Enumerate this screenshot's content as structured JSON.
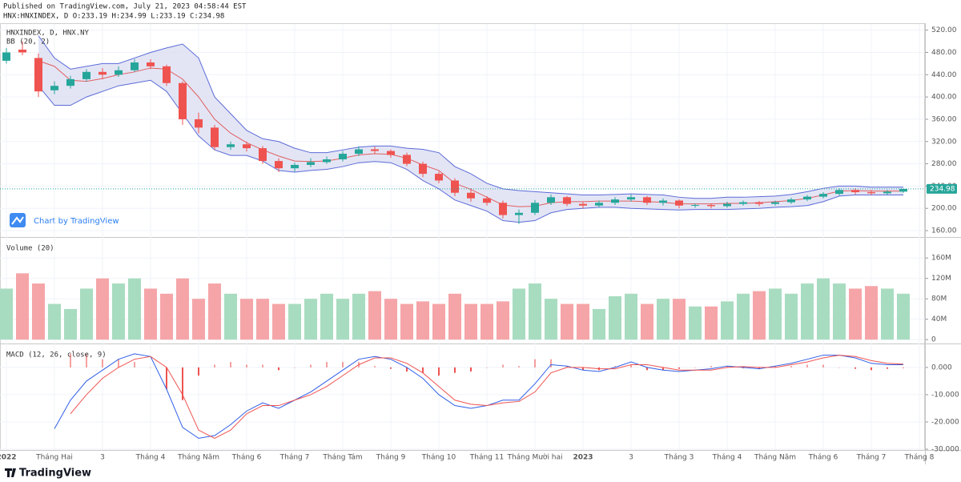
{
  "header": {
    "published": "Published on TradingView.com, July 21, 2023 04:58:44 EST",
    "quote": "HNX:HNXINDEX, D O:233.19 H:234.99 L:233.19 C:234.98"
  },
  "watermark": "Chart by TradingView",
  "footer": "TradingView",
  "chart_data": [
    {
      "type": "candlestick",
      "title": "HNXINDEX, D, HNX.NY",
      "study": "BB (20, 2)",
      "categories": [
        "2022",
        null,
        null,
        "Tháng Hai",
        null,
        null,
        "3",
        null,
        null,
        "Tháng 4",
        null,
        null,
        "Tháng Năm",
        null,
        null,
        "Tháng 6",
        null,
        null,
        "Tháng 7",
        null,
        null,
        "Tháng Tám",
        null,
        null,
        "Tháng 9",
        null,
        null,
        "Tháng 10",
        null,
        null,
        "Tháng 11",
        null,
        null,
        "Tháng Mười hai",
        null,
        null,
        "2023",
        null,
        null,
        "3",
        null,
        null,
        "Tháng 3",
        null,
        null,
        "Tháng 4",
        null,
        null,
        "Tháng Năm",
        null,
        null,
        "Tháng 6",
        null,
        null,
        "Tháng 7",
        null,
        null,
        "Tháng 8"
      ],
      "open": [
        465,
        485,
        470,
        412,
        420,
        432,
        445,
        440,
        448,
        462,
        455,
        425,
        360,
        345,
        310,
        315,
        308,
        285,
        272,
        278,
        283,
        288,
        298,
        306,
        303,
        296,
        280,
        262,
        250,
        228,
        218,
        210,
        188,
        192,
        210,
        220,
        208,
        205,
        210,
        216,
        220,
        210,
        214,
        205,
        206,
        204,
        208,
        211,
        208,
        211,
        216,
        221,
        226,
        233,
        229,
        227,
        230,
        null
      ],
      "high": [
        488,
        500,
        478,
        428,
        438,
        450,
        452,
        455,
        468,
        468,
        458,
        428,
        372,
        350,
        320,
        320,
        312,
        290,
        282,
        290,
        293,
        303,
        311,
        311,
        306,
        300,
        284,
        266,
        254,
        236,
        222,
        214,
        198,
        215,
        225,
        222,
        212,
        214,
        220,
        225,
        222,
        218,
        216,
        209,
        209,
        212,
        214,
        213,
        214,
        219,
        224,
        229,
        236,
        236,
        233,
        233,
        235,
        null
      ],
      "low": [
        460,
        475,
        400,
        405,
        415,
        428,
        432,
        436,
        445,
        450,
        420,
        350,
        335,
        305,
        305,
        302,
        280,
        265,
        266,
        274,
        280,
        284,
        294,
        298,
        291,
        276,
        256,
        245,
        222,
        212,
        205,
        182,
        172,
        188,
        206,
        204,
        200,
        202,
        206,
        212,
        206,
        205,
        200,
        201,
        200,
        201,
        205,
        204,
        205,
        208,
        213,
        218,
        223,
        225,
        224,
        224,
        228,
        null
      ],
      "close": [
        480,
        480,
        410,
        420,
        432,
        445,
        440,
        448,
        462,
        455,
        425,
        360,
        345,
        310,
        315,
        308,
        285,
        272,
        278,
        283,
        288,
        298,
        306,
        303,
        296,
        280,
        262,
        250,
        228,
        218,
        210,
        188,
        192,
        210,
        220,
        208,
        205,
        210,
        216,
        220,
        210,
        214,
        205,
        206,
        204,
        208,
        211,
        208,
        211,
        216,
        221,
        226,
        233,
        229,
        227,
        230,
        234.98,
        null
      ],
      "up_color": "#26a69a",
      "down_color": "#ef5350",
      "bands": {
        "upper": [
          null,
          null,
          510,
          470,
          450,
          455,
          460,
          460,
          470,
          480,
          488,
          495,
          470,
          400,
          370,
          340,
          325,
          320,
          308,
          300,
          300,
          305,
          310,
          312,
          312,
          308,
          306,
          300,
          275,
          262,
          245,
          235,
          232,
          230,
          228,
          226,
          224,
          224,
          225,
          226,
          225,
          224,
          220,
          218,
          218,
          220,
          220,
          221,
          222,
          225,
          230,
          236,
          240,
          240,
          238,
          238,
          238,
          null
        ],
        "middle": [
          null,
          null,
          465,
          455,
          430,
          428,
          433,
          440,
          445,
          452,
          450,
          432,
          400,
          360,
          335,
          318,
          305,
          294,
          285,
          284,
          285,
          290,
          296,
          298,
          297,
          290,
          278,
          268,
          245,
          234,
          220,
          206,
          203,
          204,
          210,
          212,
          212,
          213,
          213,
          213,
          212,
          211,
          208,
          208,
          208,
          209,
          209,
          210,
          212,
          214,
          218,
          224,
          231,
          232,
          231,
          231,
          231,
          null
        ],
        "lower": [
          null,
          null,
          420,
          385,
          385,
          400,
          410,
          420,
          425,
          430,
          410,
          370,
          330,
          305,
          295,
          295,
          285,
          268,
          265,
          268,
          270,
          275,
          282,
          284,
          282,
          270,
          250,
          235,
          215,
          205,
          195,
          178,
          175,
          178,
          192,
          198,
          200,
          202,
          202,
          200,
          199,
          198,
          197,
          198,
          198,
          198,
          199,
          200,
          202,
          203,
          205,
          212,
          222,
          224,
          224,
          224,
          224,
          null
        ],
        "band_color": "#5c6bd8",
        "fill_color": "#dcdff3",
        "middle_color": "#e06060"
      },
      "last_price": 234.98,
      "last_price_color": "#26a69a",
      "ylim": [
        150,
        531
      ],
      "yticks": [
        {
          "value": 160,
          "label": "160.00"
        },
        {
          "value": 200,
          "label": "200.00"
        },
        {
          "value": 240,
          "label": "240.00"
        },
        {
          "value": 280,
          "label": "280.00"
        },
        {
          "value": 320,
          "label": "320.00"
        },
        {
          "value": 360,
          "label": "360.00"
        },
        {
          "value": 400,
          "label": "400.00"
        },
        {
          "value": 440,
          "label": "440.00"
        },
        {
          "value": 480,
          "label": "480.00"
        },
        {
          "value": 520,
          "label": "520.00"
        }
      ],
      "grid": true
    },
    {
      "type": "volume",
      "title": "Volume (20)",
      "values": [
        100000000,
        130000000,
        110000000,
        70000000,
        60000000,
        100000000,
        120000000,
        110000000,
        120000000,
        100000000,
        90000000,
        120000000,
        80000000,
        110000000,
        90000000,
        80000000,
        80000000,
        70000000,
        70000000,
        80000000,
        90000000,
        80000000,
        90000000,
        95000000,
        80000000,
        70000000,
        75000000,
        70000000,
        90000000,
        70000000,
        70000000,
        75000000,
        100000000,
        110000000,
        80000000,
        70000000,
        70000000,
        60000000,
        85000000,
        90000000,
        70000000,
        80000000,
        80000000,
        65000000,
        65000000,
        75000000,
        90000000,
        95000000,
        100000000,
        90000000,
        110000000,
        120000000,
        110000000,
        100000000,
        105000000,
        100000000,
        90000000,
        null
      ],
      "up_color": "#a8dcc0",
      "down_color": "#f5a5a8",
      "ylim": [
        -6000000,
        198000000
      ],
      "yticks": [
        0,
        {
          "value": 40000000,
          "label": "40M"
        },
        {
          "value": 80000000,
          "label": "80M"
        },
        {
          "value": 120000000,
          "label": "120M"
        },
        {
          "value": 160000000,
          "label": "160M"
        }
      ],
      "grid": true
    },
    {
      "type": "macd",
      "title": "MACD (12, 26, close, 9)",
      "macd": [
        null,
        null,
        null,
        -22.5,
        -12,
        -5,
        -1,
        3,
        5,
        4,
        -8,
        -22,
        -26,
        -25,
        -21,
        -16,
        -13,
        -15,
        -12,
        -9,
        -5,
        -1,
        3,
        4,
        3,
        0,
        -4,
        -10,
        -14,
        -15,
        -14,
        -12,
        -12,
        -6,
        1,
        0.5,
        -1,
        -1.5,
        0,
        2,
        0,
        -1,
        -1.5,
        -1,
        -0.5,
        0.5,
        0,
        -0.5,
        0.5,
        1.5,
        3,
        4.5,
        4.5,
        3.5,
        1.5,
        1,
        1,
        null
      ],
      "signal": [
        null,
        null,
        null,
        null,
        -17,
        -10,
        -4,
        0,
        3,
        4,
        0,
        -10,
        -23,
        -26,
        -23,
        -17,
        -14,
        -14,
        -12,
        -10,
        -7,
        -3,
        1,
        3.5,
        3.5,
        1.5,
        -2,
        -7,
        -12,
        -13.5,
        -14,
        -13,
        -12.5,
        -9,
        -2,
        0,
        0,
        -0.5,
        -0.5,
        1,
        1,
        0,
        -1,
        -1,
        -1,
        0,
        0.3,
        0,
        0,
        1,
        2,
        3.5,
        4.5,
        4,
        2.5,
        1.5,
        1.2,
        null
      ],
      "histogram": [
        null,
        null,
        null,
        null,
        5,
        5,
        3,
        3,
        2,
        0,
        -8,
        -12,
        -3,
        1,
        2,
        1,
        1,
        -1,
        0,
        1,
        2,
        2,
        2,
        0.5,
        -0.5,
        -1.5,
        -2,
        -3,
        -2,
        -1.5,
        0,
        1,
        0.5,
        3,
        3,
        0.5,
        -1,
        -1,
        0.5,
        1,
        -1,
        -1,
        -0.5,
        0,
        0.5,
        0.5,
        -0.3,
        -0.5,
        0.5,
        0.5,
        1,
        1,
        0,
        -0.5,
        -1,
        -0.5,
        -0.2,
        null
      ],
      "macd_color": "#2f5fe6",
      "signal_color": "#ef5350",
      "histogram_color": "#ef5350",
      "ylim": [
        -29.7,
        7.9
      ],
      "yticks": [
        {
          "value": -30,
          "label": "-30.000"
        },
        {
          "value": -20,
          "label": "-20.000"
        },
        {
          "value": -10,
          "label": "-10.000"
        },
        {
          "value": 0,
          "label": "0.000"
        }
      ],
      "grid": true
    }
  ]
}
